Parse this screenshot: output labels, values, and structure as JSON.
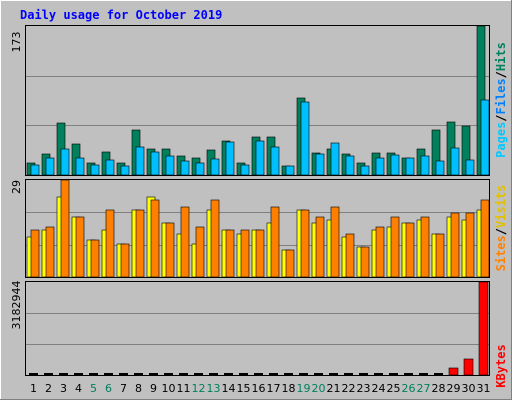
{
  "chart_data": [
    {
      "type": "bar",
      "title": "Daily usage for October 2019",
      "categories": [
        "1",
        "2",
        "3",
        "4",
        "5",
        "6",
        "7",
        "8",
        "9",
        "10",
        "11",
        "12",
        "13",
        "14",
        "15",
        "16",
        "17",
        "18",
        "19",
        "20",
        "21",
        "22",
        "23",
        "24",
        "25",
        "26",
        "27",
        "28",
        "29",
        "30",
        "31"
      ],
      "weekend_days": [
        "5",
        "6",
        "12",
        "13",
        "19",
        "20",
        "26",
        "27"
      ],
      "axis_max_label": "173",
      "ylim": [
        0,
        173
      ],
      "legend": [
        "Pages",
        "Files",
        "Hits"
      ],
      "series": [
        {
          "name": "Hits",
          "color": "#00805c",
          "values": [
            14,
            24,
            60,
            36,
            14,
            27,
            14,
            52,
            30,
            30,
            22,
            20,
            29,
            40,
            14,
            44,
            44,
            11,
            89,
            26,
            30,
            24,
            14,
            26,
            26,
            20,
            30,
            52,
            62,
            57,
            173
          ]
        },
        {
          "name": "Files",
          "color": "#00bfff",
          "values": [
            12,
            20,
            30,
            20,
            12,
            17,
            10,
            33,
            27,
            22,
            16,
            14,
            19,
            38,
            12,
            40,
            33,
            10,
            85,
            24,
            37,
            22,
            11,
            20,
            23,
            20,
            22,
            16,
            31,
            17,
            87
          ]
        },
        {
          "name": "Pages",
          "color": "#00c8ff",
          "values": [
            0,
            0,
            0,
            0,
            0,
            0,
            0,
            0,
            0,
            0,
            0,
            0,
            0,
            0,
            0,
            0,
            0,
            0,
            0,
            0,
            0,
            0,
            0,
            0,
            0,
            0,
            0,
            0,
            0,
            0,
            0
          ]
        }
      ]
    },
    {
      "type": "bar",
      "axis_max_label": "29",
      "ylim": [
        0,
        29
      ],
      "legend": [
        "Sites",
        "Visits"
      ],
      "series": [
        {
          "name": "Visits",
          "color": "#ffff00",
          "values": [
            12,
            14,
            24,
            18,
            11,
            14,
            10,
            20,
            24,
            16,
            13,
            10,
            20,
            14,
            13,
            14,
            16,
            8,
            20,
            16,
            17,
            12,
            9,
            14,
            15,
            16,
            17,
            13,
            18,
            17,
            20
          ]
        },
        {
          "name": "Sites",
          "color": "#ff8000",
          "values": [
            14,
            15,
            29,
            18,
            11,
            20,
            10,
            20,
            23,
            16,
            21,
            15,
            23,
            14,
            14,
            14,
            21,
            8,
            20,
            18,
            21,
            13,
            9,
            15,
            18,
            16,
            18,
            13,
            19,
            19,
            23
          ]
        }
      ]
    },
    {
      "type": "bar",
      "axis_max_label": "3182944",
      "ylim": [
        0,
        3182944
      ],
      "legend": [
        "KBytes"
      ],
      "series": [
        {
          "name": "KBytes",
          "color": "#ff0000",
          "values": [
            0,
            0,
            0,
            0,
            0,
            0,
            0,
            0,
            0,
            0,
            0,
            0,
            0,
            0,
            0,
            0,
            0,
            0,
            0,
            0,
            0,
            0,
            0,
            0,
            0,
            0,
            0,
            0,
            240000,
            550000,
            3182944
          ]
        }
      ]
    }
  ],
  "colors": {
    "background": "#c0c0c0",
    "title": "#0000ff",
    "weekday_label": "#000000",
    "weekend_label": "#00805c",
    "pages": "#00c8ff",
    "files": "#0080ff",
    "hits": "#00805c",
    "sites": "#ff8000",
    "visits": "#ffff00",
    "kbytes": "#ff0000"
  }
}
